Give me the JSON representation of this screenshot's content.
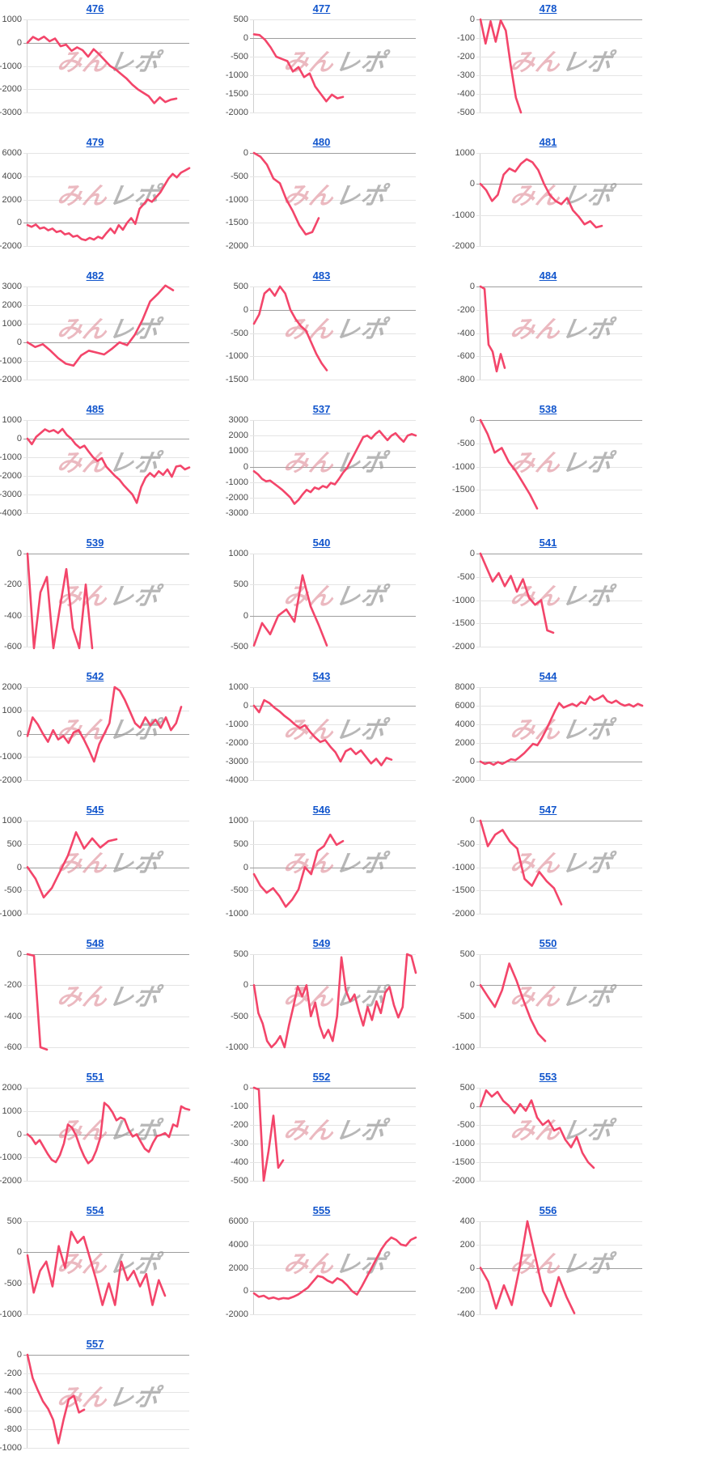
{
  "watermark": {
    "part1": "みん",
    "part2": "レポ",
    "pink": "#e08f9b",
    "gray": "#9a9a9a"
  },
  "colors": {
    "line": "#f3456a",
    "link": "#1155cc",
    "grid": "#e4e4e4",
    "zero_line": "#9e9e9e",
    "axis": "#cfcfcf",
    "label": "#4a4a4a"
  },
  "chart_data": [
    {
      "type": "line",
      "title": "476",
      "ylim": [
        -3000,
        1000
      ],
      "yticks": [
        1000,
        0,
        -1000,
        -2000,
        -3000
      ],
      "x_span": 0.92,
      "values": [
        0,
        250,
        120,
        260,
        60,
        180,
        -150,
        -80,
        -350,
        -200,
        -320,
        -600,
        -280,
        -500,
        -750,
        -1000,
        -1150,
        -1350,
        -1550,
        -1800,
        -2000,
        -2150,
        -2300,
        -2600,
        -2350,
        -2550,
        -2450,
        -2400
      ]
    },
    {
      "type": "line",
      "title": "477",
      "ylim": [
        -2000,
        500
      ],
      "yticks": [
        500,
        0,
        -500,
        -1000,
        -1500,
        -2000
      ],
      "x_span": 0.55,
      "values": [
        100,
        80,
        -50,
        -250,
        -500,
        -560,
        -620,
        -900,
        -780,
        -1050,
        -950,
        -1300,
        -1500,
        -1700,
        -1520,
        -1620,
        -1580
      ]
    },
    {
      "type": "line",
      "title": "478",
      "ylim": [
        -500,
        0
      ],
      "yticks": [
        0,
        -100,
        -200,
        -300,
        -400,
        -500
      ],
      "x_span": 0.25,
      "values": [
        0,
        -130,
        -10,
        -120,
        -5,
        -60,
        -250,
        -420,
        -500
      ]
    },
    {
      "type": "line",
      "title": "479",
      "ylim": [
        -2000,
        6000
      ],
      "yticks": [
        6000,
        4000,
        2000,
        0,
        -2000
      ],
      "x_span": 1.0,
      "values": [
        -200,
        -350,
        -150,
        -500,
        -400,
        -650,
        -500,
        -800,
        -700,
        -1000,
        -900,
        -1200,
        -1100,
        -1400,
        -1500,
        -1300,
        -1450,
        -1200,
        -1350,
        -900,
        -500,
        -900,
        -200,
        -600,
        0,
        400,
        -100,
        1200,
        1600,
        2000,
        1800,
        2200,
        2600,
        3200,
        3800,
        4200,
        3900,
        4300,
        4500,
        4700
      ]
    },
    {
      "type": "line",
      "title": "480",
      "ylim": [
        -2000,
        0
      ],
      "yticks": [
        0,
        -500,
        -1000,
        -1500,
        -2000
      ],
      "x_span": 0.4,
      "values": [
        0,
        -80,
        -250,
        -550,
        -650,
        -1000,
        -1250,
        -1550,
        -1750,
        -1700,
        -1400
      ]
    },
    {
      "type": "line",
      "title": "481",
      "ylim": [
        -2000,
        1000
      ],
      "yticks": [
        1000,
        0,
        -1000,
        -2000
      ],
      "x_span": 0.75,
      "values": [
        0,
        -200,
        -550,
        -350,
        300,
        500,
        400,
        650,
        800,
        700,
        450,
        0,
        -350,
        -550,
        -650,
        -450,
        -850,
        -1050,
        -1300,
        -1200,
        -1400,
        -1350
      ]
    },
    {
      "type": "line",
      "title": "482",
      "ylim": [
        -2000,
        3000
      ],
      "yticks": [
        3000,
        2000,
        1000,
        0,
        -1000,
        -2000
      ],
      "x_span": 0.9,
      "values": [
        0,
        -250,
        -100,
        -450,
        -850,
        -1150,
        -1250,
        -700,
        -450,
        -550,
        -650,
        -350,
        0,
        -150,
        400,
        1200,
        2200,
        2600,
        3050,
        2800
      ]
    },
    {
      "type": "line",
      "title": "483",
      "ylim": [
        -1500,
        500
      ],
      "yticks": [
        500,
        0,
        -500,
        -1000,
        -1500
      ],
      "x_span": 0.45,
      "values": [
        -300,
        -100,
        350,
        450,
        300,
        500,
        350,
        0,
        -200,
        -350,
        -450,
        -700,
        -950,
        -1150,
        -1300
      ]
    },
    {
      "type": "line",
      "title": "484",
      "ylim": [
        -800,
        0
      ],
      "yticks": [
        0,
        -200,
        -400,
        -600,
        -800
      ],
      "x_span": 0.15,
      "values": [
        0,
        -20,
        -500,
        -560,
        -730,
        -580,
        -700
      ]
    },
    {
      "type": "line",
      "title": "485",
      "ylim": [
        -4000,
        1000
      ],
      "yticks": [
        1000,
        0,
        -1000,
        -2000,
        -3000,
        -4000
      ],
      "x_span": 1.0,
      "values": [
        0,
        -300,
        100,
        300,
        500,
        380,
        460,
        300,
        520,
        200,
        0,
        -300,
        -500,
        -380,
        -700,
        -1000,
        -1200,
        -1050,
        -1500,
        -1750,
        -2000,
        -2200,
        -2500,
        -2750,
        -3000,
        -3450,
        -2600,
        -2100,
        -1850,
        -2050,
        -1750,
        -1950,
        -1650,
        -2050,
        -1500,
        -1450,
        -1650,
        -1550
      ]
    },
    {
      "type": "line",
      "title": "537",
      "ylim": [
        -3000,
        3000
      ],
      "yticks": [
        3000,
        2000,
        1000,
        0,
        -1000,
        -2000,
        -3000
      ],
      "x_span": 1.0,
      "values": [
        -300,
        -500,
        -800,
        -950,
        -900,
        -1100,
        -1300,
        -1500,
        -1750,
        -2000,
        -2400,
        -2150,
        -1800,
        -1500,
        -1650,
        -1350,
        -1450,
        -1250,
        -1350,
        -1050,
        -1150,
        -800,
        -400,
        -100,
        400,
        900,
        1400,
        1900,
        2000,
        1800,
        2100,
        2300,
        2000,
        1700,
        2000,
        2150,
        1850,
        1600,
        2000,
        2100,
        2000
      ]
    },
    {
      "type": "line",
      "title": "538",
      "ylim": [
        -2000,
        0
      ],
      "yticks": [
        0,
        -500,
        -1000,
        -1500,
        -2000
      ],
      "x_span": 0.35,
      "values": [
        0,
        -300,
        -700,
        -600,
        -900,
        -1100,
        -1350,
        -1600,
        -1900
      ]
    },
    {
      "type": "line",
      "title": "539",
      "ylim": [
        -600,
        0
      ],
      "yticks": [
        0,
        -200,
        -400,
        -600
      ],
      "x_span": 0.4,
      "values": [
        0,
        -610,
        -250,
        -150,
        -610,
        -350,
        -100,
        -480,
        -610,
        -200,
        -610
      ]
    },
    {
      "type": "line",
      "title": "540",
      "ylim": [
        -500,
        1000
      ],
      "yticks": [
        1000,
        500,
        0,
        -500
      ],
      "x_span": 0.45,
      "values": [
        -480,
        -120,
        -300,
        0,
        100,
        -100,
        650,
        150,
        -150,
        -480
      ]
    },
    {
      "type": "line",
      "title": "541",
      "ylim": [
        -2000,
        0
      ],
      "yticks": [
        0,
        -500,
        -1000,
        -1500,
        -2000
      ],
      "x_span": 0.45,
      "values": [
        0,
        -300,
        -600,
        -420,
        -700,
        -480,
        -820,
        -550,
        -950,
        -1100,
        -1000,
        -1650,
        -1700
      ]
    },
    {
      "type": "line",
      "title": "542",
      "ylim": [
        -2000,
        2000
      ],
      "yticks": [
        2000,
        1000,
        0,
        -1000,
        -2000
      ],
      "x_span": 0.95,
      "values": [
        -100,
        700,
        400,
        0,
        -350,
        150,
        -250,
        -100,
        -400,
        50,
        150,
        -250,
        -700,
        -1200,
        -450,
        0,
        450,
        2000,
        1850,
        1450,
        950,
        450,
        250,
        700,
        350,
        600,
        250,
        700,
        150,
        450,
        1150
      ]
    },
    {
      "type": "line",
      "title": "543",
      "ylim": [
        -4000,
        1000
      ],
      "yticks": [
        1000,
        0,
        -1000,
        -2000,
        -3000,
        -4000
      ],
      "x_span": 0.85,
      "values": [
        0,
        -350,
        300,
        150,
        -100,
        -300,
        -550,
        -750,
        -1000,
        -1200,
        -1050,
        -1400,
        -1700,
        -1950,
        -1850,
        -2200,
        -2500,
        -3000,
        -2450,
        -2300,
        -2600,
        -2400,
        -2750,
        -3100,
        -2850,
        -3200,
        -2800,
        -2900
      ]
    },
    {
      "type": "line",
      "title": "544",
      "ylim": [
        -2000,
        8000
      ],
      "yticks": [
        8000,
        6000,
        4000,
        2000,
        0,
        -2000
      ],
      "x_span": 1.0,
      "values": [
        0,
        -250,
        -100,
        -350,
        -50,
        -250,
        0,
        250,
        150,
        500,
        900,
        1400,
        1900,
        1750,
        2500,
        3400,
        4400,
        5400,
        6300,
        5800,
        6000,
        6200,
        5950,
        6400,
        6200,
        7000,
        6600,
        6800,
        7100,
        6500,
        6300,
        6550,
        6200,
        6000,
        6150,
        5900,
        6200,
        6000
      ]
    },
    {
      "type": "line",
      "title": "545",
      "ylim": [
        -1000,
        1000
      ],
      "yticks": [
        1000,
        500,
        0,
        -500,
        -1000
      ],
      "x_span": 0.55,
      "values": [
        0,
        -250,
        -650,
        -450,
        -100,
        250,
        750,
        400,
        620,
        420,
        560,
        600
      ]
    },
    {
      "type": "line",
      "title": "546",
      "ylim": [
        -1000,
        1000
      ],
      "yticks": [
        1000,
        500,
        0,
        -500,
        -1000
      ],
      "x_span": 0.55,
      "values": [
        -150,
        -400,
        -550,
        -450,
        -620,
        -850,
        -700,
        -480,
        0,
        -150,
        350,
        450,
        700,
        480,
        560
      ]
    },
    {
      "type": "line",
      "title": "547",
      "ylim": [
        -2000,
        0
      ],
      "yticks": [
        0,
        -500,
        -1000,
        -1500,
        -2000
      ],
      "x_span": 0.5,
      "values": [
        0,
        -550,
        -300,
        -200,
        -450,
        -600,
        -1250,
        -1400,
        -1100,
        -1300,
        -1450,
        -1800
      ]
    },
    {
      "type": "line",
      "title": "548",
      "ylim": [
        -600,
        0
      ],
      "yticks": [
        0,
        -200,
        -400,
        -600
      ],
      "x_span": 0.12,
      "values": [
        0,
        -10,
        -600,
        -615
      ]
    },
    {
      "type": "line",
      "title": "549",
      "ylim": [
        -1000,
        500
      ],
      "yticks": [
        500,
        0,
        -500,
        -1000
      ],
      "x_span": 1.0,
      "values": [
        0,
        -450,
        -620,
        -900,
        -1000,
        -930,
        -820,
        -1000,
        -650,
        -350,
        -20,
        -180,
        0,
        -500,
        -280,
        -650,
        -850,
        -720,
        -900,
        -500,
        450,
        -80,
        -260,
        -150,
        -420,
        -650,
        -350,
        -560,
        -260,
        -450,
        -120,
        -30,
        -320,
        -520,
        -350,
        500,
        470,
        200
      ]
    },
    {
      "type": "line",
      "title": "550",
      "ylim": [
        -1000,
        500
      ],
      "yticks": [
        500,
        0,
        -500,
        -1000
      ],
      "x_span": 0.4,
      "values": [
        0,
        -180,
        -350,
        -80,
        350,
        80,
        -250,
        -550,
        -780,
        -900
      ]
    },
    {
      "type": "line",
      "title": "551",
      "ylim": [
        -2000,
        2000
      ],
      "yticks": [
        2000,
        1000,
        0,
        -1000,
        -2000
      ],
      "x_span": 1.0,
      "values": [
        0,
        -150,
        -420,
        -250,
        -550,
        -850,
        -1100,
        -1200,
        -900,
        -400,
        420,
        280,
        -50,
        -550,
        -950,
        -1250,
        -1100,
        -700,
        -150,
        1350,
        1200,
        950,
        600,
        720,
        640,
        200,
        -100,
        0,
        -320,
        -620,
        -760,
        -380,
        -80,
        -30,
        50,
        -120,
        420,
        330,
        1200,
        1100,
        1050
      ]
    },
    {
      "type": "line",
      "title": "552",
      "ylim": [
        -500,
        0
      ],
      "yticks": [
        0,
        -100,
        -200,
        -300,
        -400,
        -500
      ],
      "x_span": 0.18,
      "values": [
        0,
        -10,
        -500,
        -340,
        -150,
        -430,
        -390
      ]
    },
    {
      "type": "line",
      "title": "553",
      "ylim": [
        -2000,
        500
      ],
      "yticks": [
        500,
        0,
        -500,
        -1000,
        -1500,
        -2000
      ],
      "x_span": 0.7,
      "values": [
        0,
        430,
        260,
        390,
        150,
        20,
        -180,
        60,
        -120,
        160,
        -300,
        -500,
        -380,
        -650,
        -580,
        -900,
        -1100,
        -820,
        -1250,
        -1500,
        -1650
      ]
    },
    {
      "type": "line",
      "title": "554",
      "ylim": [
        -1000,
        500
      ],
      "yticks": [
        500,
        0,
        -500,
        -1000
      ],
      "x_span": 0.85,
      "values": [
        -50,
        -650,
        -300,
        -150,
        -550,
        100,
        -250,
        330,
        150,
        250,
        -100,
        -450,
        -850,
        -500,
        -850,
        -150,
        -450,
        -300,
        -550,
        -350,
        -850,
        -450,
        -700
      ]
    },
    {
      "type": "line",
      "title": "555",
      "ylim": [
        -2000,
        6000
      ],
      "yticks": [
        6000,
        4000,
        2000,
        0,
        -2000
      ],
      "x_span": 1.0,
      "values": [
        -200,
        -500,
        -400,
        -650,
        -550,
        -700,
        -600,
        -650,
        -500,
        -300,
        0,
        300,
        800,
        1300,
        1200,
        900,
        700,
        1100,
        900,
        500,
        0,
        -300,
        400,
        1200,
        2000,
        2800,
        3600,
        4200,
        4600,
        4400,
        4000,
        3900,
        4400,
        4600
      ]
    },
    {
      "type": "line",
      "title": "556",
      "ylim": [
        -400,
        400
      ],
      "yticks": [
        400,
        200,
        0,
        -200,
        -400
      ],
      "x_span": 0.58,
      "values": [
        0,
        -120,
        -350,
        -150,
        -320,
        0,
        400,
        100,
        -200,
        -330,
        -80,
        -250,
        -390
      ]
    },
    {
      "type": "line",
      "title": "557",
      "ylim": [
        -1000,
        0
      ],
      "yticks": [
        0,
        -200,
        -400,
        -600,
        -800,
        -1000
      ],
      "x_span": 0.35,
      "values": [
        0,
        -250,
        -380,
        -500,
        -580,
        -700,
        -950,
        -700,
        -480,
        -440,
        -620,
        -590
      ]
    }
  ]
}
